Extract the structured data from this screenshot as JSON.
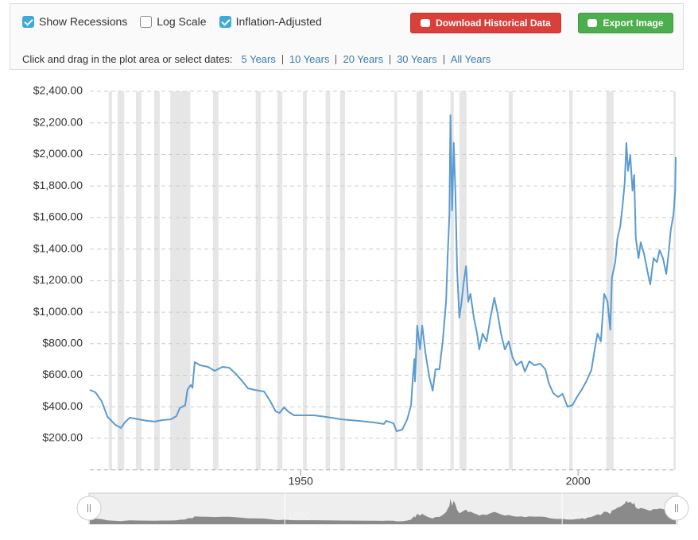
{
  "toolbar": {
    "checkboxes": [
      {
        "label": "Show Recessions",
        "checked": true
      },
      {
        "label": "Log Scale",
        "checked": false
      },
      {
        "label": "Inflation-Adjusted",
        "checked": true
      }
    ],
    "download_button": "Download Historical Data",
    "export_button": "Export Image",
    "range_prompt": "Click and drag in the plot area or select dates:",
    "range_links": [
      "5 Years",
      "10 Years",
      "20 Years",
      "30 Years",
      "All Years"
    ]
  },
  "chart_data": {
    "type": "line",
    "color": "#5b9bd0",
    "grid": true,
    "xlim": [
      1912,
      2017.6
    ],
    "xticks": [
      1950,
      2000
    ],
    "ylim": [
      0,
      2400
    ],
    "yticks": [
      {
        "value": 200,
        "label": "$200.00"
      },
      {
        "value": 400,
        "label": "$400.00"
      },
      {
        "value": 600,
        "label": "$600.00"
      },
      {
        "value": 800,
        "label": "$800.00"
      },
      {
        "value": 1000,
        "label": "$1,000.00"
      },
      {
        "value": 1200,
        "label": "$1,200.00"
      },
      {
        "value": 1400,
        "label": "$1,400.00"
      },
      {
        "value": 1600,
        "label": "$1,600.00"
      },
      {
        "value": 1800,
        "label": "$1,800.00"
      },
      {
        "value": 2000,
        "label": "$2,000.00"
      },
      {
        "value": 2200,
        "label": "$2,200.00"
      },
      {
        "value": 2400,
        "label": "$2,400.00"
      }
    ],
    "recessions": [
      [
        1915.4,
        1916.0
      ],
      [
        1917.0,
        1918.2
      ],
      [
        1920.3,
        1921.3
      ],
      [
        1923.6,
        1924.6
      ],
      [
        1926.5,
        1930.1
      ],
      [
        1934.2,
        1935.2
      ],
      [
        1941.9,
        1942.8
      ],
      [
        1945.8,
        1946.7
      ],
      [
        1950.4,
        1951.1
      ],
      [
        1954.5,
        1955.3
      ],
      [
        1957.1,
        1958.0
      ],
      [
        1966.9,
        1967.4
      ],
      [
        1970.9,
        1972.0
      ],
      [
        1977.0,
        1977.6
      ],
      [
        1978.6,
        1979.9
      ],
      [
        1987.5,
        1988.2
      ],
      [
        1998.4,
        1999.0
      ],
      [
        2005.1,
        2006.4
      ],
      [
        2017.2,
        2017.6
      ]
    ],
    "x": [
      1912,
      1913,
      1914.1,
      1915.2,
      1916.6,
      1917.6,
      1918.3,
      1919.2,
      1920.9,
      1922.3,
      1923.7,
      1925.2,
      1926.6,
      1927.6,
      1928.2,
      1929.2,
      1929.6,
      1930.2,
      1930.5,
      1930.9,
      1931.9,
      1933.3,
      1934.5,
      1935.9,
      1937.1,
      1938.2,
      1939.5,
      1940.5,
      1941.7,
      1943.4,
      1944.5,
      1945.5,
      1946.2,
      1947.0,
      1947.7,
      1948.8,
      1950.3,
      1952.4,
      1954.6,
      1957.4,
      1960.3,
      1963.1,
      1965.0,
      1965.4,
      1966.7,
      1967.3,
      1968.3,
      1969.2,
      1969.9,
      1970.2,
      1970.5,
      1970.6,
      1971.0,
      1971.5,
      1971.9,
      1972.5,
      1973.2,
      1973.8,
      1974.3,
      1975.0,
      1975.6,
      1976.2,
      1976.5,
      1976.8,
      1977.0,
      1977.3,
      1977.6,
      1977.9,
      1978.2,
      1978.6,
      1979.0,
      1979.3,
      1979.8,
      1980.2,
      1980.6,
      1981.2,
      1981.8,
      1982.2,
      1982.8,
      1983.5,
      1984.2,
      1984.9,
      1985.5,
      1986.1,
      1986.8,
      1987.5,
      1988.2,
      1988.9,
      1989.8,
      1990.4,
      1991.2,
      1992.1,
      1993.2,
      1994.1,
      1994.7,
      1995.5,
      1996.4,
      1997.2,
      1998.1,
      1999.0,
      1999.8,
      2000.7,
      2001.5,
      2002.4,
      2003.0,
      2003.5,
      2004.1,
      2004.7,
      2005.3,
      2005.8,
      2006.1,
      2006.7,
      2007.1,
      2007.6,
      2008.0,
      2008.4,
      2008.7,
      2009.0,
      2009.4,
      2009.8,
      2010.1,
      2010.4,
      2010.9,
      2011.3,
      2011.9,
      2012.6,
      2013.0,
      2013.6,
      2014.2,
      2014.7,
      2015.3,
      2015.9,
      2016.3,
      2016.7,
      2017.2,
      2017.5,
      2017.6
    ],
    "values": [
      507,
      492,
      437,
      336,
      286,
      266,
      301,
      331,
      320,
      311,
      306,
      316,
      320,
      341,
      391,
      411,
      508,
      538,
      520,
      683,
      663,
      653,
      628,
      653,
      648,
      612,
      562,
      517,
      507,
      497,
      437,
      371,
      361,
      396,
      371,
      346,
      346,
      346,
      336,
      320,
      311,
      301,
      291,
      311,
      296,
      245,
      255,
      320,
      411,
      577,
      703,
      562,
      915,
      764,
      915,
      739,
      587,
      502,
      638,
      638,
      814,
      1066,
      1368,
      1619,
      2249,
      1645,
      2073,
      1745,
      1267,
      965,
      1066,
      1166,
      1292,
      1066,
      1116,
      965,
      864,
      764,
      864,
      814,
      965,
      1091,
      990,
      864,
      764,
      814,
      713,
      663,
      688,
      623,
      688,
      663,
      673,
      638,
      552,
      487,
      462,
      482,
      401,
      411,
      462,
      512,
      562,
      633,
      764,
      864,
      814,
      1116,
      1066,
      889,
      1217,
      1317,
      1468,
      1544,
      1670,
      1820,
      2073,
      1896,
      1996,
      1770,
      1871,
      1468,
      1342,
      1443,
      1368,
      1242,
      1176,
      1342,
      1317,
      1393,
      1342,
      1242,
      1368,
      1519,
      1619,
      1770,
      1982
    ]
  }
}
